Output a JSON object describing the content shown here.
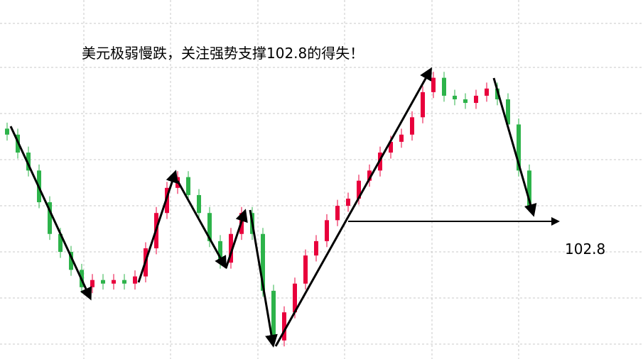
{
  "chart_data": {
    "type": "candlestick",
    "title": "美元极弱慢跌，关注强势支撑102.8的得失！",
    "ylim": [
      100.5,
      106.5
    ],
    "level": 102.8,
    "up_color": "#e8003c",
    "down_color": "#2db34a",
    "open": [
      104.35,
      104.25,
      103.95,
      103.65,
      103.12,
      102.59,
      102.29,
      101.99,
      101.7,
      101.82,
      101.76,
      101.82,
      101.76,
      101.88,
      102.35,
      102.94,
      103.36,
      103.54,
      103.24,
      102.94,
      102.47,
      102.11,
      102.59,
      102.94,
      102.59,
      101.64,
      100.81,
      101.28,
      101.76,
      102.23,
      102.47,
      102.82,
      103.06,
      103.18,
      103.48,
      103.65,
      103.95,
      104.13,
      104.25,
      104.54,
      104.96,
      105.2,
      104.9,
      104.84,
      104.78,
      104.9,
      105.02,
      104.84,
      104.42,
      103.65
    ],
    "high": [
      104.45,
      104.35,
      104.05,
      103.75,
      103.22,
      102.69,
      102.39,
      102.09,
      101.92,
      101.92,
      101.92,
      101.92,
      101.98,
      102.45,
      103.04,
      103.46,
      103.64,
      103.64,
      103.34,
      103.04,
      102.57,
      102.69,
      103.04,
      103.04,
      102.69,
      101.74,
      101.38,
      101.86,
      102.33,
      102.57,
      102.92,
      103.16,
      103.28,
      103.58,
      103.75,
      104.05,
      104.23,
      104.35,
      104.64,
      105.06,
      105.3,
      105.3,
      105.0,
      104.94,
      105.0,
      105.12,
      105.12,
      104.94,
      104.52,
      103.75
    ],
    "low": [
      104.15,
      103.85,
      103.55,
      103.02,
      102.49,
      102.19,
      101.89,
      101.6,
      101.6,
      101.66,
      101.66,
      101.66,
      101.66,
      101.78,
      102.25,
      102.84,
      103.26,
      103.14,
      102.84,
      102.37,
      102.01,
      102.01,
      102.49,
      102.49,
      101.54,
      100.71,
      100.71,
      101.18,
      101.66,
      102.13,
      102.37,
      102.72,
      102.96,
      103.08,
      103.38,
      103.55,
      103.85,
      104.03,
      104.15,
      104.44,
      104.86,
      104.8,
      104.74,
      104.68,
      104.68,
      104.8,
      104.74,
      104.32,
      103.55,
      102.96
    ],
    "close": [
      104.25,
      103.95,
      103.65,
      103.12,
      102.59,
      102.29,
      101.99,
      101.7,
      101.82,
      101.76,
      101.82,
      101.76,
      101.88,
      102.35,
      102.94,
      103.36,
      103.54,
      103.24,
      102.94,
      102.47,
      102.11,
      102.59,
      102.94,
      102.59,
      101.64,
      100.81,
      101.28,
      101.76,
      102.23,
      102.47,
      102.82,
      103.06,
      103.18,
      103.48,
      103.65,
      103.95,
      104.13,
      104.25,
      104.54,
      104.96,
      105.2,
      104.9,
      104.84,
      104.78,
      104.9,
      105.02,
      104.84,
      104.42,
      103.65,
      103.06
    ]
  }
}
